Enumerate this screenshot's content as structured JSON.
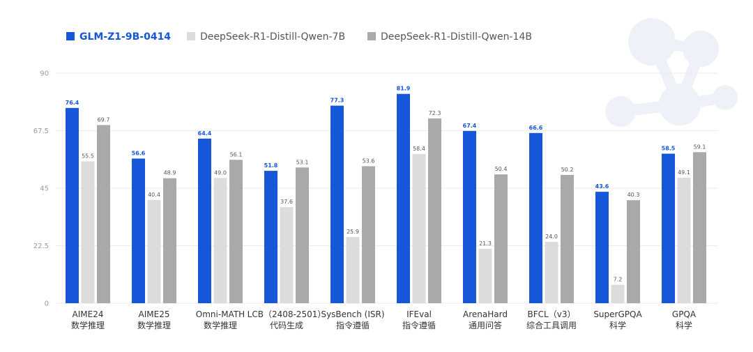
{
  "colors": {
    "series_1": "#1557d8",
    "series_2": "#dcdcdc",
    "series_3": "#a9a9a9",
    "grid": "#ebebeb",
    "decoration": "#eef1f8"
  },
  "legend": {
    "items": [
      {
        "label": "GLM-Z1-9B-0414",
        "color": "#1557d8"
      },
      {
        "label": "DeepSeek-R1-Distill-Qwen-7B",
        "color": "#dcdcdc"
      },
      {
        "label": "DeepSeek-R1-Distill-Qwen-14B",
        "color": "#a9a9a9"
      }
    ]
  },
  "chart_data": {
    "type": "bar",
    "title": "",
    "xlabel": "",
    "ylabel": "",
    "ylim": [
      0,
      90
    ],
    "yticks": [
      0,
      22.5,
      45,
      67.5,
      90
    ],
    "ytick_labels": [
      "0",
      "22.5",
      "45",
      "67.5",
      "90"
    ],
    "grid": true,
    "legend_position": "top-left",
    "categories": [
      {
        "line1": "AIME24",
        "line2": "数学推理"
      },
      {
        "line1": "AIME25",
        "line2": "数学推理"
      },
      {
        "line1": "Omni-MATH",
        "line2": "数学推理"
      },
      {
        "line1": "LCB（2408-2501）",
        "line2": "代码生成"
      },
      {
        "line1": "SysBench (ISR)",
        "line2": "指令遵循"
      },
      {
        "line1": "IFEval",
        "line2": "指令遵循"
      },
      {
        "line1": "ArenaHard",
        "line2": "通用问答"
      },
      {
        "line1": "BFCL（v3）",
        "line2": "综合工具调用"
      },
      {
        "line1": "SuperGPQA",
        "line2": "科学"
      },
      {
        "line1": "GPQA",
        "line2": "科学"
      }
    ],
    "series": [
      {
        "name": "GLM-Z1-9B-0414",
        "values": [
          76.4,
          56.6,
          64.4,
          51.8,
          77.3,
          81.9,
          67.4,
          66.6,
          43.6,
          58.5
        ]
      },
      {
        "name": "DeepSeek-R1-Distill-Qwen-7B",
        "values": [
          55.5,
          40.4,
          49.0,
          37.6,
          25.9,
          58.4,
          21.3,
          24.0,
          7.2,
          49.1
        ]
      },
      {
        "name": "DeepSeek-R1-Distill-Qwen-14B",
        "values": [
          69.7,
          48.9,
          56.1,
          53.1,
          53.6,
          72.3,
          50.4,
          50.2,
          40.3,
          59.1
        ]
      }
    ]
  }
}
